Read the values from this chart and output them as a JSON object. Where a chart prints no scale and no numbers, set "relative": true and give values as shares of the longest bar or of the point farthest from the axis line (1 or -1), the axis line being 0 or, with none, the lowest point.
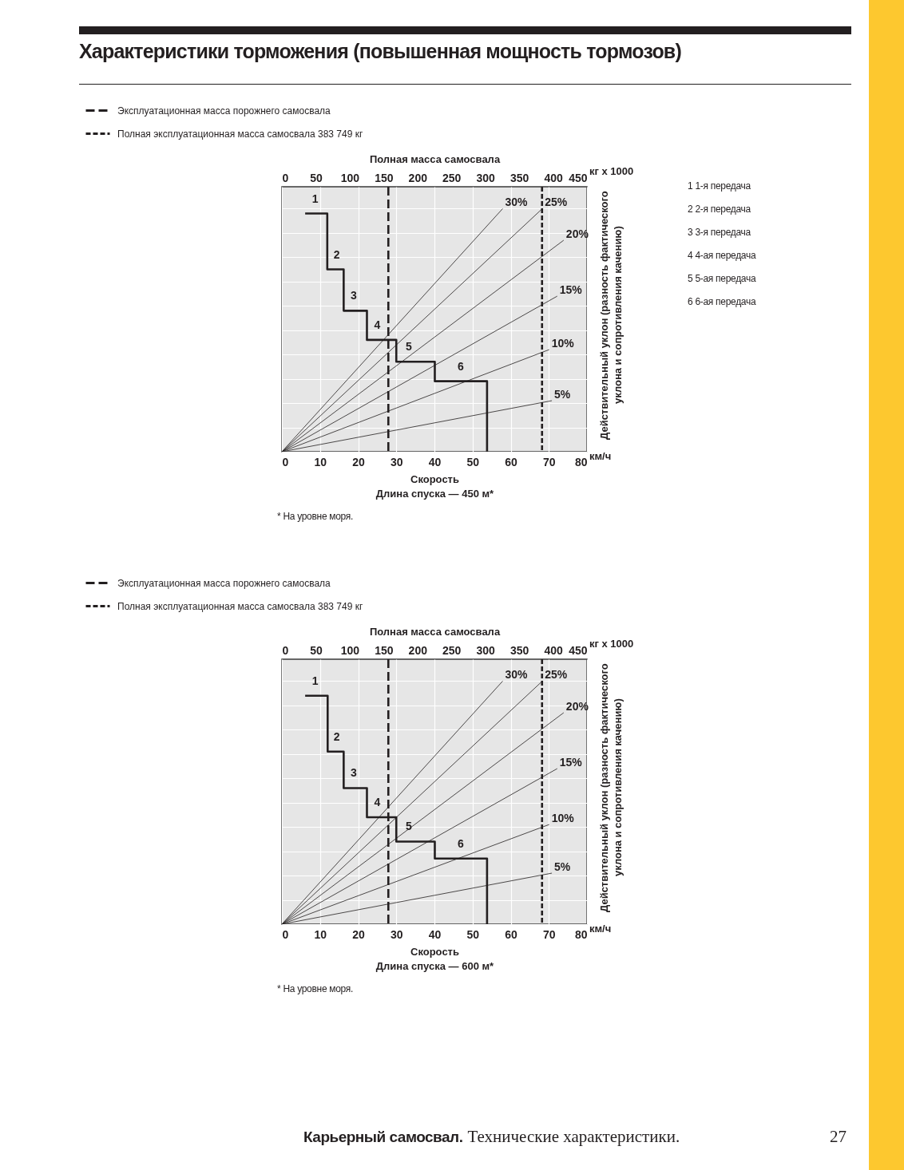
{
  "chart_data": [
    {
      "type": "step",
      "title": "Характеристики торможения (повышенная мощность тормозов)",
      "xlabel": "Скорость",
      "x2label": "Полная масса самосвала",
      "ylabel": "Действительный уклон (разность фактического уклона и сопротивления качению)",
      "relative": true,
      "grid": true,
      "legend": "top left",
      "xlim": [
        0,
        80
      ],
      "xticks": [
        0,
        10,
        20,
        30,
        40,
        50,
        60,
        70,
        80
      ],
      "x2lim": [
        0,
        450
      ],
      "x2ticks": [
        0,
        50,
        100,
        150,
        200,
        250,
        300,
        350,
        400,
        450
      ],
      "series": [
        {
          "color": "#231f20",
          "x": [
            6.1,
            11.9,
            16.2,
            22.3,
            30,
            40.1,
            53.8
          ],
          "values": [
            0.98,
            0.75,
            0.58,
            0.46,
            0.37,
            0.29,
            0
          ]
        },
        {
          "name": "30%",
          "type": "line",
          "color": "#231f20",
          "x": [
            0,
            57.9
          ],
          "values": [
            0,
            1
          ]
        },
        {
          "name": "25%",
          "type": "line",
          "color": "#231f20",
          "x": [
            0,
            68.3
          ],
          "values": [
            0,
            1
          ]
        },
        {
          "name": "20%",
          "type": "line",
          "color": "#231f20",
          "x": [
            0,
            73.9
          ],
          "values": [
            0,
            0.87
          ]
        },
        {
          "name": "15%",
          "type": "line",
          "color": "#231f20",
          "x": [
            0,
            72.2
          ],
          "values": [
            0,
            0.64
          ]
        },
        {
          "name": "10%",
          "type": "line",
          "color": "#231f20",
          "x": [
            0,
            70.1
          ],
          "values": [
            0,
            0.42
          ]
        },
        {
          "name": "5%",
          "type": "line",
          "color": "#231f20",
          "x": [
            0,
            70.8
          ],
          "values": [
            0,
            0.21
          ]
        }
      ],
      "ref_lines": [
        {
          "axis": "x2",
          "value": 157,
          "label": "Эксплуатационная масса порожнего самосвала",
          "line_style": "dashed"
        },
        {
          "axis": "x2",
          "value": 383.749,
          "label": "Полная эксплуатационная масса самосвала 383 749 кг",
          "line_style": "dashed"
        }
      ],
      "annotations": [
        {
          "text": "1",
          "x": 8.7,
          "y": 0.98
        },
        {
          "text": "2",
          "x": 14.4,
          "y": 0.75
        },
        {
          "text": "3",
          "x": 18.8,
          "y": 0.58
        },
        {
          "text": "4",
          "x": 25,
          "y": 0.46
        },
        {
          "text": "5",
          "x": 33.3,
          "y": 0.37
        },
        {
          "text": "6",
          "x": 46.9,
          "y": 0.29
        },
        "кг x 1000",
        "км/ч",
        "Длина спуска — 450 м*",
        "* На уровне моря.",
        "1 1-я передача",
        "2 2-я передача",
        "3 3-я передача",
        "4 4-ая передача",
        "5 5-ая передача",
        "6 6-ая передача"
      ]
    },
    {
      "type": "step",
      "xlabel": "Скорость",
      "x2label": "Полная масса самосвала",
      "ylabel": "Действительный уклон (разность фактического уклона и сопротивления качению)",
      "relative": true,
      "grid": true,
      "legend": "top left",
      "xlim": [
        0,
        80
      ],
      "xticks": [
        0,
        10,
        20,
        30,
        40,
        50,
        60,
        70,
        80
      ],
      "x2lim": [
        0,
        450
      ],
      "x2ticks": [
        0,
        50,
        100,
        150,
        200,
        250,
        300,
        350,
        400,
        450
      ],
      "series": [
        {
          "color": "#231f20",
          "x": [
            6.1,
            12,
            16.2,
            22.3,
            30,
            40.1,
            53.8
          ],
          "values": [
            0.94,
            0.71,
            0.56,
            0.44,
            0.34,
            0.27,
            0
          ]
        },
        {
          "name": "30%",
          "type": "line",
          "color": "#231f20",
          "x": [
            0,
            57.9
          ],
          "values": [
            0,
            1
          ]
        },
        {
          "name": "25%",
          "type": "line",
          "color": "#231f20",
          "x": [
            0,
            68.3
          ],
          "values": [
            0,
            1
          ]
        },
        {
          "name": "20%",
          "type": "line",
          "color": "#231f20",
          "x": [
            0,
            73.9
          ],
          "values": [
            0,
            0.87
          ]
        },
        {
          "name": "15%",
          "type": "line",
          "color": "#231f20",
          "x": [
            0,
            72.2
          ],
          "values": [
            0,
            0.64
          ]
        },
        {
          "name": "10%",
          "type": "line",
          "color": "#231f20",
          "x": [
            0,
            70.1
          ],
          "values": [
            0,
            0.41
          ]
        },
        {
          "name": "5%",
          "type": "line",
          "color": "#231f20",
          "x": [
            0,
            70.8
          ],
          "values": [
            0,
            0.21
          ]
        }
      ],
      "ref_lines": [
        {
          "axis": "x2",
          "value": 157,
          "label": "Эксплуатационная масса порожнего самосвала",
          "line_style": "dashed"
        },
        {
          "axis": "x2",
          "value": 383.749,
          "label": "Полная эксплуатационная масса самосвала 383 749 кг",
          "line_style": "dashed"
        }
      ],
      "annotations": [
        {
          "text": "1",
          "x": 8.7,
          "y": 0.94
        },
        {
          "text": "2",
          "x": 14.4,
          "y": 0.71
        },
        {
          "text": "3",
          "x": 18.8,
          "y": 0.56
        },
        {
          "text": "4",
          "x": 25,
          "y": 0.44
        },
        {
          "text": "5",
          "x": 33.3,
          "y": 0.34
        },
        {
          "text": "6",
          "x": 46.9,
          "y": 0.27
        },
        "кг x 1000",
        "км/ч",
        "Длина спуска — 600 м*",
        "* На уровне моря.",
        "Карьерный самосвал.",
        "Технические характеристики.",
        "27"
      ]
    }
  ]
}
